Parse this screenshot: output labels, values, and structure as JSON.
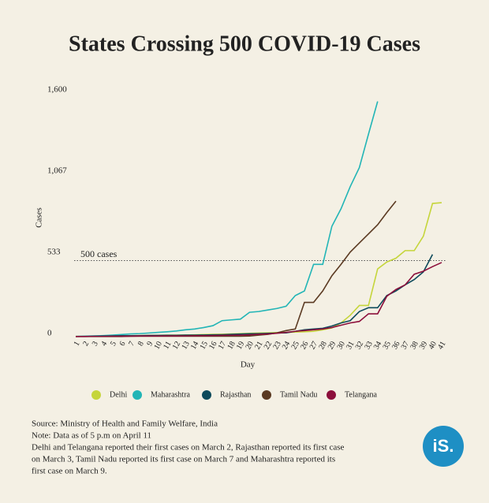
{
  "chart_data": {
    "type": "line",
    "title": "States Crossing 500 COVID-19 Cases",
    "x_label": "Day",
    "y_label": "Cases",
    "x": [
      1,
      2,
      3,
      4,
      5,
      6,
      7,
      8,
      9,
      10,
      11,
      12,
      13,
      14,
      15,
      16,
      17,
      18,
      19,
      20,
      21,
      22,
      23,
      24,
      25,
      26,
      27,
      28,
      29,
      30,
      31,
      32,
      33,
      34,
      35,
      36,
      37,
      38,
      39,
      40,
      41
    ],
    "xlim": [
      1,
      41
    ],
    "ylim": [
      0,
      1600
    ],
    "yticks": [
      0,
      533,
      {
        "value": 1067,
        "label": "1,067"
      },
      {
        "value": 1600,
        "label": "1,600"
      }
    ],
    "reference_line": {
      "value": 500,
      "label": "500 cases"
    },
    "series": [
      {
        "name": "Delhi",
        "color": "#c5d53b",
        "values": [
          2,
          2,
          3,
          3,
          4,
          5,
          6,
          7,
          8,
          9,
          10,
          10,
          11,
          12,
          14,
          15,
          16,
          18,
          20,
          22,
          24,
          25,
          27,
          28,
          30,
          32,
          35,
          45,
          57,
          90,
          140,
          205,
          205,
          445,
          490,
          515,
          565,
          565,
          660,
          875,
          880
        ]
      },
      {
        "name": "Maharashtra",
        "color": "#22b5b6",
        "values": [
          2,
          3,
          5,
          7,
          10,
          14,
          18,
          20,
          24,
          28,
          32,
          37,
          45,
          50,
          60,
          72,
          105,
          110,
          115,
          160,
          165,
          175,
          185,
          200,
          270,
          300,
          475,
          475,
          725,
          840,
          985,
          1110,
          1330,
          1545,
          null,
          null,
          null,
          null,
          null,
          null,
          null
        ]
      },
      {
        "name": "Rajasthan",
        "color": "#0e4a5b",
        "values": [
          1,
          2,
          3,
          4,
          5,
          6,
          6,
          7,
          8,
          8,
          9,
          9,
          10,
          10,
          11,
          12,
          13,
          15,
          17,
          19,
          20,
          22,
          24,
          25,
          35,
          45,
          50,
          55,
          70,
          90,
          105,
          165,
          190,
          190,
          270,
          300,
          340,
          375,
          425,
          540,
          null
        ]
      },
      {
        "name": "Tamil Nadu",
        "color": "#5b3a22",
        "values": [
          1,
          1,
          1,
          1,
          1,
          1,
          3,
          3,
          3,
          3,
          3,
          3,
          3,
          3,
          3,
          3,
          3,
          3,
          3,
          4,
          10,
          15,
          25,
          40,
          50,
          225,
          225,
          300,
          400,
          475,
          555,
          615,
          675,
          735,
          815,
          890,
          null,
          null,
          null,
          null,
          null
        ]
      },
      {
        "name": "Telangana",
        "color": "#8c0f3b",
        "values": [
          1,
          1,
          2,
          2,
          3,
          3,
          3,
          4,
          4,
          4,
          5,
          5,
          5,
          6,
          6,
          7,
          8,
          9,
          10,
          12,
          15,
          18,
          22,
          28,
          35,
          40,
          45,
          50,
          60,
          75,
          90,
          100,
          150,
          150,
          265,
          310,
          340,
          410,
          430,
          460,
          487
        ]
      }
    ],
    "notes": [
      "Source: Ministry of Health and Family Welfare, India",
      "Note: Data as of 5 p.m on April 11",
      "Delhi and Telangana reported their first cases on March 2, Rajasthan reported its first case",
      "on March 3, Tamil Nadu reported its first case on March 7 and Maharashtra reported its",
      "first case on March 9."
    ],
    "logo": "iS."
  }
}
